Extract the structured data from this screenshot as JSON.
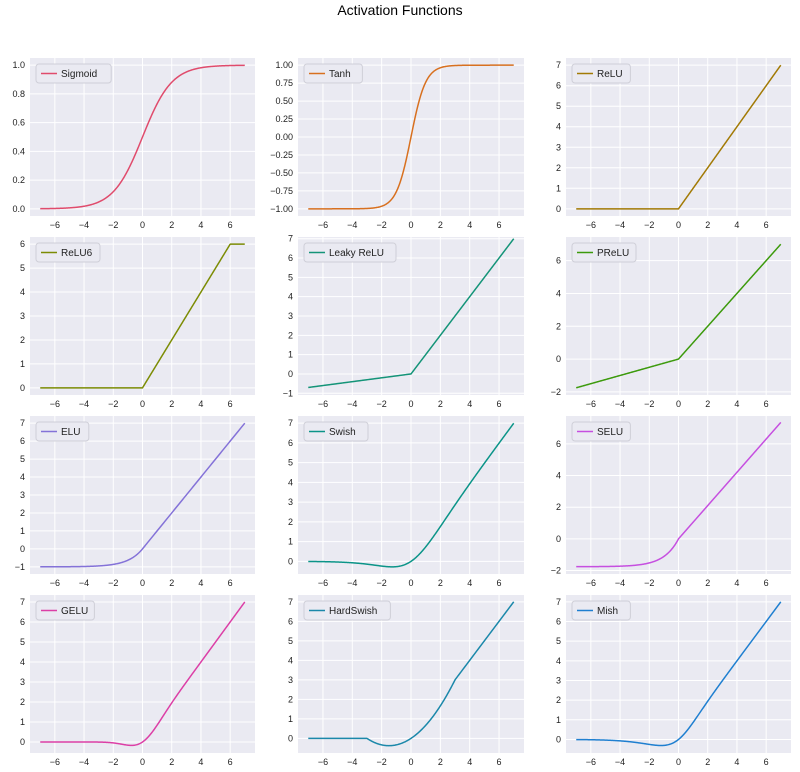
{
  "title": "Activation Functions",
  "chart_data": [
    {
      "type": "line",
      "name": "Sigmoid",
      "color": "#e04b6c",
      "func": "sigmoid",
      "xlim": [
        -7.7,
        7.7
      ],
      "ylim": [
        -0.05,
        1.05
      ],
      "xticks": [
        -6,
        -4,
        -2,
        0,
        2,
        4,
        6
      ],
      "yticks": [
        0.0,
        0.2,
        0.4,
        0.6,
        0.8,
        1.0
      ],
      "ytick_labels": [
        "0.0",
        "0.2",
        "0.4",
        "0.6",
        "0.8",
        "1.0"
      ],
      "legend": "upper left",
      "grid": true
    },
    {
      "type": "line",
      "name": "Tanh",
      "color": "#d8701f",
      "func": "tanh",
      "xlim": [
        -7.7,
        7.7
      ],
      "ylim": [
        -1.1,
        1.1
      ],
      "xticks": [
        -6,
        -4,
        -2,
        0,
        2,
        4,
        6
      ],
      "yticks": [
        -1.0,
        -0.75,
        -0.5,
        -0.25,
        0.0,
        0.25,
        0.5,
        0.75,
        1.0
      ],
      "ytick_labels": [
        "−1.00",
        "−0.75",
        "−0.50",
        "−0.25",
        "0.00",
        "0.25",
        "0.50",
        "0.75",
        "1.00"
      ],
      "legend": "upper left",
      "grid": true
    },
    {
      "type": "line",
      "name": "ReLU",
      "color": "#a27a05",
      "func": "relu",
      "xlim": [
        -7.7,
        7.7
      ],
      "ylim": [
        -0.35,
        7.35
      ],
      "xticks": [
        -6,
        -4,
        -2,
        0,
        2,
        4,
        6
      ],
      "yticks": [
        0,
        1,
        2,
        3,
        4,
        5,
        6,
        7
      ],
      "ytick_labels": [
        "0",
        "1",
        "2",
        "3",
        "4",
        "5",
        "6",
        "7"
      ],
      "legend": "upper left",
      "grid": true
    },
    {
      "type": "line",
      "name": "ReLU6",
      "color": "#7c8c04",
      "func": "relu6",
      "xlim": [
        -7.7,
        7.7
      ],
      "ylim": [
        -0.3,
        6.3
      ],
      "xticks": [
        -6,
        -4,
        -2,
        0,
        2,
        4,
        6
      ],
      "yticks": [
        0,
        1,
        2,
        3,
        4,
        5,
        6
      ],
      "ytick_labels": [
        "0",
        "1",
        "2",
        "3",
        "4",
        "5",
        "6"
      ],
      "legend": "upper left",
      "grid": true
    },
    {
      "type": "line",
      "name": "Leaky ReLU",
      "color": "#149478",
      "func": "leaky",
      "xlim": [
        -7.7,
        7.7
      ],
      "ylim": [
        -1.09,
        7.09
      ],
      "xticks": [
        -6,
        -4,
        -2,
        0,
        2,
        4,
        6
      ],
      "yticks": [
        -1,
        0,
        1,
        2,
        3,
        4,
        5,
        6,
        7
      ],
      "ytick_labels": [
        "−1",
        "0",
        "1",
        "2",
        "3",
        "4",
        "5",
        "6",
        "7"
      ],
      "legend": "upper left",
      "grid": true
    },
    {
      "type": "line",
      "name": "PReLU",
      "color": "#3c9a0c",
      "func": "prelu",
      "xlim": [
        -7.7,
        7.7
      ],
      "ylim": [
        -2.19,
        7.44
      ],
      "xticks": [
        -6,
        -4,
        -2,
        0,
        2,
        4,
        6
      ],
      "yticks": [
        -2,
        0,
        2,
        4,
        6
      ],
      "ytick_labels": [
        "−2",
        "0",
        "2",
        "4",
        "6"
      ],
      "legend": "upper left",
      "grid": true
    },
    {
      "type": "line",
      "name": "ELU",
      "color": "#8472d8",
      "func": "elu",
      "xlim": [
        -7.7,
        7.7
      ],
      "ylim": [
        -1.4,
        7.4
      ],
      "xticks": [
        -6,
        -4,
        -2,
        0,
        2,
        4,
        6
      ],
      "yticks": [
        -1,
        0,
        1,
        2,
        3,
        4,
        5,
        6,
        7
      ],
      "ytick_labels": [
        "−1",
        "0",
        "1",
        "2",
        "3",
        "4",
        "5",
        "6",
        "7"
      ],
      "legend": "upper left",
      "grid": true
    },
    {
      "type": "line",
      "name": "Swish",
      "color": "#0b9488",
      "func": "swish",
      "xlim": [
        -7.7,
        7.7
      ],
      "ylim": [
        -0.64,
        7.36
      ],
      "xticks": [
        -6,
        -4,
        -2,
        0,
        2,
        4,
        6
      ],
      "yticks": [
        0,
        1,
        2,
        3,
        4,
        5,
        6,
        7
      ],
      "ytick_labels": [
        "0",
        "1",
        "2",
        "3",
        "4",
        "5",
        "6",
        "7"
      ],
      "legend": "upper left",
      "grid": true
    },
    {
      "type": "line",
      "name": "SELU",
      "color": "#c64fe0",
      "func": "selu",
      "xlim": [
        -7.7,
        7.7
      ],
      "ylim": [
        -2.22,
        7.76
      ],
      "xticks": [
        -6,
        -4,
        -2,
        0,
        2,
        4,
        6
      ],
      "yticks": [
        -2,
        0,
        2,
        4,
        6
      ],
      "ytick_labels": [
        "−2",
        "0",
        "2",
        "4",
        "6"
      ],
      "legend": "upper left",
      "grid": true
    },
    {
      "type": "line",
      "name": "GELU",
      "color": "#dc3fa6",
      "func": "gelu",
      "xlim": [
        -7.7,
        7.7
      ],
      "ylim": [
        -0.55,
        7.35
      ],
      "xticks": [
        -6,
        -4,
        -2,
        0,
        2,
        4,
        6
      ],
      "yticks": [
        0,
        1,
        2,
        3,
        4,
        5,
        6,
        7
      ],
      "ytick_labels": [
        "0",
        "1",
        "2",
        "3",
        "4",
        "5",
        "6",
        "7"
      ],
      "legend": "upper left",
      "grid": true
    },
    {
      "type": "line",
      "name": "HardSwish",
      "color": "#1b88aa",
      "func": "hardswish",
      "xlim": [
        -7.7,
        7.7
      ],
      "ylim": [
        -0.75,
        7.35
      ],
      "xticks": [
        -6,
        -4,
        -2,
        0,
        2,
        4,
        6
      ],
      "yticks": [
        0,
        1,
        2,
        3,
        4,
        5,
        6,
        7
      ],
      "ytick_labels": [
        "0",
        "1",
        "2",
        "3",
        "4",
        "5",
        "6",
        "7"
      ],
      "legend": "upper left",
      "grid": true
    },
    {
      "type": "line",
      "name": "Mish",
      "color": "#1f7fd0",
      "func": "mish",
      "xlim": [
        -7.7,
        7.7
      ],
      "ylim": [
        -0.69,
        7.35
      ],
      "xticks": [
        -6,
        -4,
        -2,
        0,
        2,
        4,
        6
      ],
      "yticks": [
        0,
        1,
        2,
        3,
        4,
        5,
        6,
        7
      ],
      "ytick_labels": [
        "0",
        "1",
        "2",
        "3",
        "4",
        "5",
        "6",
        "7"
      ],
      "legend": "upper left",
      "grid": true
    }
  ]
}
